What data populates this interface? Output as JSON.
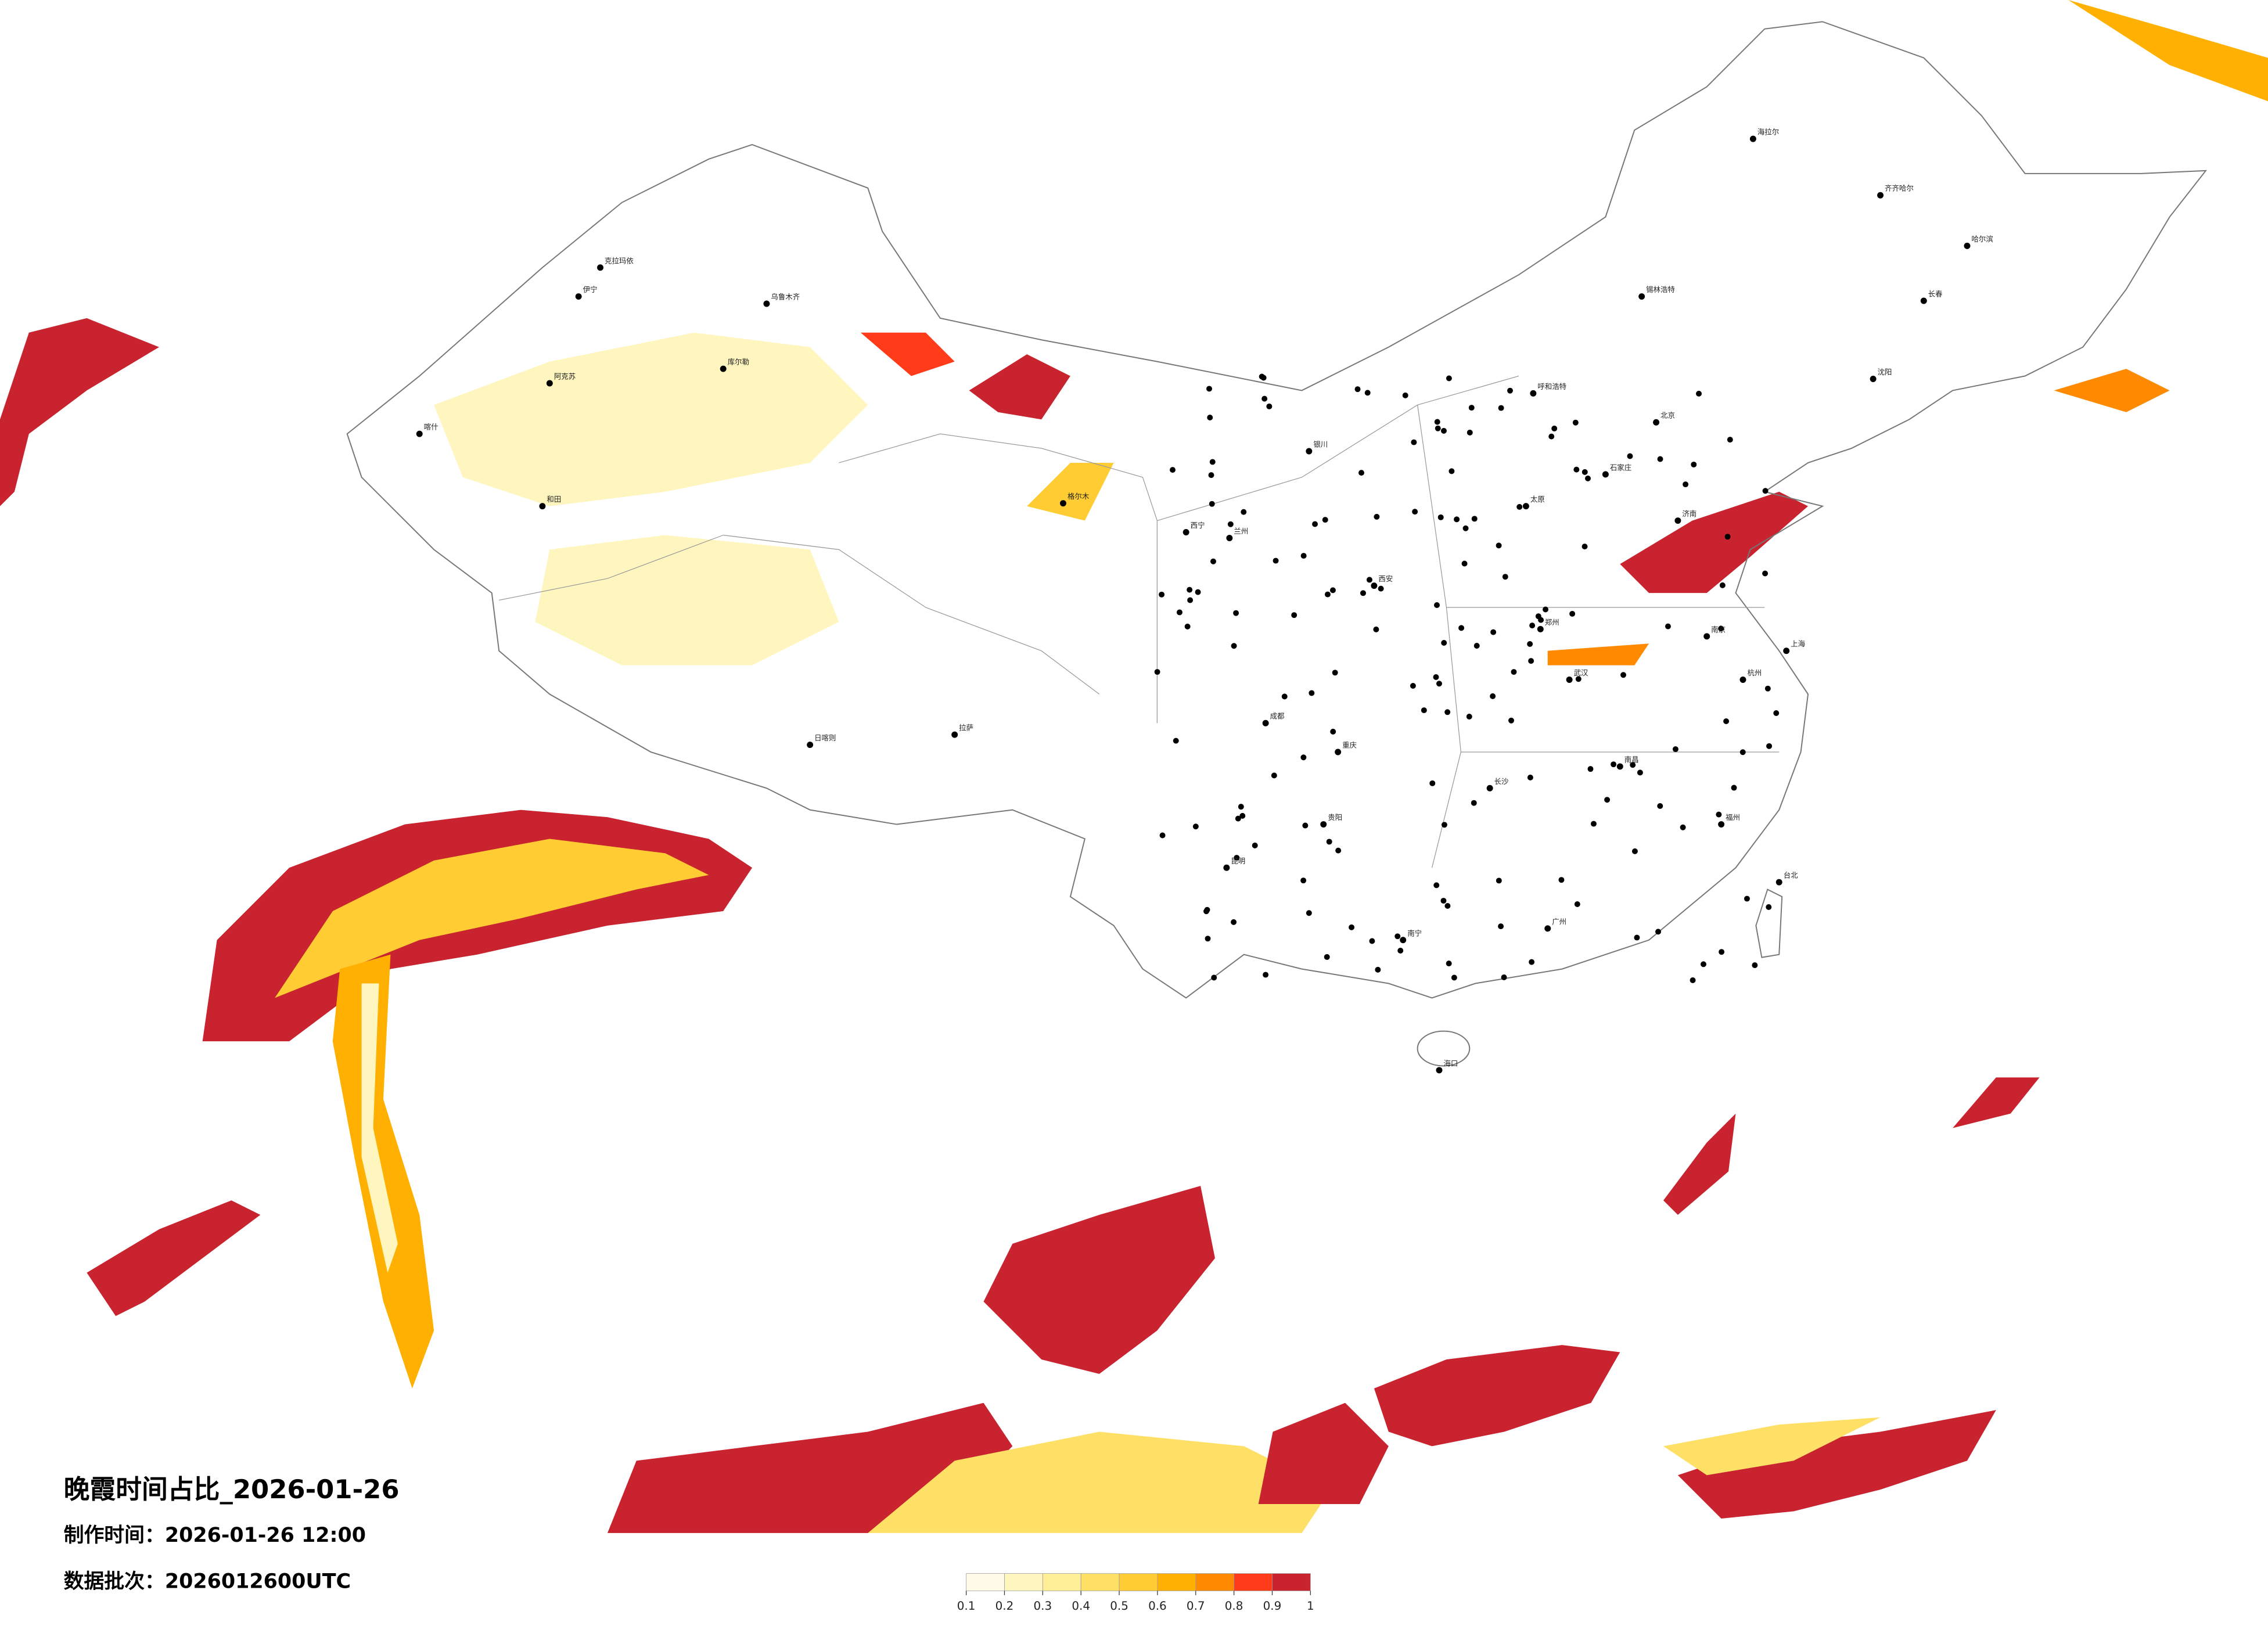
{
  "header": {
    "title": "晚霞时间占比_2026-01-26",
    "made_time": "制作时间：2026-01-26 12:00",
    "batch": "数据批次：2026012600UTC"
  },
  "colorbar": {
    "colors": [
      "#fffbe6",
      "#fff6bf",
      "#ffef99",
      "#ffe066",
      "#ffcc33",
      "#ffb000",
      "#ff8a00",
      "#ff3b1a",
      "#c8232e"
    ],
    "xlim": [
      0.1,
      1
    ],
    "xticks": [
      0.1,
      0.2,
      0.3,
      0.4,
      0.5,
      0.6,
      0.7,
      0.8,
      0.9,
      1
    ]
  },
  "cities": [
    "克拉玛依",
    "乌鲁木齐",
    "伊宁",
    "库尔勒",
    "阿克苏",
    "喀什",
    "和田",
    "海拉尔",
    "齐齐哈尔",
    "哈尔滨",
    "长春",
    "沈阳",
    "锡林浩特",
    "呼和浩特",
    "北京",
    "石家庄",
    "太原",
    "银川",
    "兰州",
    "西宁",
    "格尔木",
    "拉萨",
    "日喀则",
    "成都",
    "重庆",
    "贵阳",
    "昆明",
    "南宁",
    "广州",
    "长沙",
    "武汉",
    "南昌",
    "杭州",
    "上海",
    "南京",
    "郑州",
    "西安",
    "济南",
    "福州",
    "海口",
    "台北"
  ]
}
